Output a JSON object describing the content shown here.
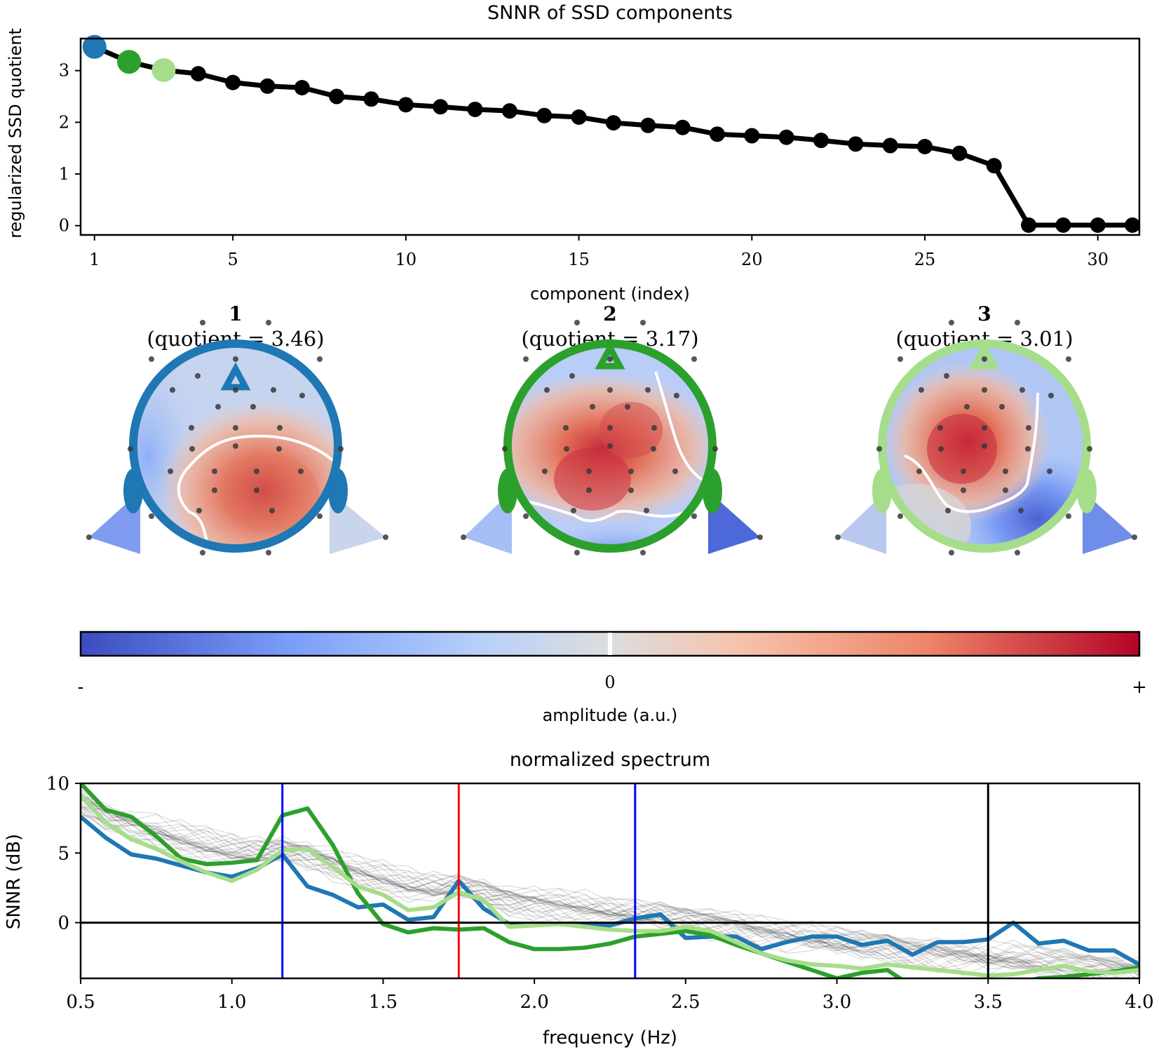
{
  "chart_data": [
    {
      "type": "line",
      "title": "SNNR of SSD components",
      "xlabel": "component (index)",
      "ylabel": "regularized SSD quotient",
      "xlim": [
        0.6,
        31.2
      ],
      "ylim": [
        -0.18,
        3.62
      ],
      "xticks": [
        1,
        5,
        10,
        15,
        20,
        25,
        30
      ],
      "yticks": [
        0,
        1,
        2,
        3
      ],
      "x": [
        1,
        2,
        3,
        4,
        5,
        6,
        7,
        8,
        9,
        10,
        11,
        12,
        13,
        14,
        15,
        16,
        17,
        18,
        19,
        20,
        21,
        22,
        23,
        24,
        25,
        26,
        27,
        28,
        29,
        30,
        31
      ],
      "values": [
        3.46,
        3.17,
        3.01,
        2.94,
        2.77,
        2.7,
        2.67,
        2.5,
        2.45,
        2.34,
        2.3,
        2.25,
        2.22,
        2.13,
        2.1,
        1.99,
        1.94,
        1.9,
        1.77,
        1.74,
        1.71,
        1.65,
        1.58,
        1.55,
        1.53,
        1.4,
        1.16,
        0.01,
        0.01,
        0.01,
        0.01
      ],
      "highlight": [
        {
          "index": 1,
          "color": "#1f77b4"
        },
        {
          "index": 2,
          "color": "#2ca02c"
        },
        {
          "index": 3,
          "color": "#a6dd8a"
        }
      ],
      "line_color": "#000000",
      "grid": false
    },
    {
      "type": "heatmap",
      "kind": "topomap",
      "colormap": "coolwarm",
      "colorbar_label": "amplitude (a.u.)",
      "colorbar_ticks": [
        "-",
        "0",
        "+"
      ],
      "maps": [
        {
          "number": "1",
          "quotient_label": "(quotient = 3.46)",
          "outline_color": "#1f77b4"
        },
        {
          "number": "2",
          "quotient_label": "(quotient = 3.17)",
          "outline_color": "#2ca02c"
        },
        {
          "number": "3",
          "quotient_label": "(quotient = 3.01)",
          "outline_color": "#a6dd8a"
        }
      ]
    },
    {
      "type": "line",
      "title": "normalized spectrum",
      "xlabel": "frequency (Hz)",
      "ylabel": "SNNR (dB)",
      "xlim": [
        0.5,
        4.0
      ],
      "ylim": [
        -4,
        10
      ],
      "xticks": [
        "0.5",
        "1.0",
        "1.5",
        "2.0",
        "2.5",
        "3.0",
        "3.5",
        "4.0"
      ],
      "yticks": [
        "0",
        "5",
        "10"
      ],
      "grid": false,
      "x": [
        0.5,
        0.583,
        0.667,
        0.75,
        0.833,
        0.917,
        1.0,
        1.083,
        1.167,
        1.25,
        1.333,
        1.417,
        1.5,
        1.583,
        1.667,
        1.75,
        1.833,
        1.917,
        2.0,
        2.083,
        2.167,
        2.25,
        2.333,
        2.417,
        2.5,
        2.583,
        2.667,
        2.75,
        2.833,
        2.917,
        3.0,
        3.083,
        3.167,
        3.25,
        3.333,
        3.417,
        3.5,
        3.583,
        3.667,
        3.75,
        3.833,
        3.917,
        4.0
      ],
      "series": [
        {
          "color": "#1f77b4",
          "values": [
            7.6,
            6.1,
            4.9,
            4.6,
            4.1,
            3.6,
            3.3,
            3.9,
            4.9,
            2.6,
            2.0,
            1.1,
            1.3,
            0.2,
            0.4,
            3.0,
            1.0,
            -0.1,
            -0.1,
            -0.1,
            -0.2,
            -0.2,
            0.3,
            0.6,
            -1.1,
            -1.0,
            -1.0,
            -1.9,
            -1.4,
            -1.0,
            -1.0,
            -1.6,
            -1.3,
            -2.3,
            -1.4,
            -1.4,
            -1.2,
            0.0,
            -1.5,
            -1.3,
            -2.0,
            -2.0,
            -3.0
          ]
        },
        {
          "color": "#2ca02c",
          "values": [
            10.0,
            8.1,
            7.6,
            6.2,
            4.6,
            4.2,
            4.3,
            4.5,
            7.7,
            8.2,
            5.6,
            2.1,
            -0.1,
            -0.7,
            -0.4,
            -0.5,
            -0.4,
            -1.4,
            -1.9,
            -1.9,
            -1.8,
            -1.5,
            -1.0,
            -0.8,
            -0.6,
            -0.9,
            -1.6,
            -2.2,
            -2.8,
            -3.4,
            -4.0,
            -3.6,
            -3.4,
            -4.6,
            -5.0,
            -4.9,
            -4.8,
            -4.4,
            -4.0,
            -3.9,
            -3.7,
            -3.5,
            -3.2
          ]
        },
        {
          "color": "#a6dd8a",
          "values": [
            9.2,
            7.2,
            6.0,
            5.3,
            4.4,
            3.6,
            3.0,
            3.8,
            5.2,
            5.3,
            4.0,
            2.6,
            2.0,
            0.9,
            1.1,
            2.2,
            1.6,
            -0.3,
            -0.2,
            -0.1,
            -0.3,
            -0.5,
            -0.6,
            -0.6,
            -0.3,
            -0.6,
            -1.4,
            -2.2,
            -2.7,
            -3.0,
            -3.1,
            -3.3,
            -3.0,
            -3.2,
            -3.4,
            -3.6,
            -3.8,
            -3.7,
            -3.4,
            -3.1,
            -3.5,
            -3.6,
            -3.4
          ]
        }
      ],
      "background_series_count": 28,
      "vlines": [
        {
          "x": 1.167,
          "color": "#0000ff"
        },
        {
          "x": 1.75,
          "color": "#ff0000"
        },
        {
          "x": 2.333,
          "color": "#0000ff"
        },
        {
          "x": 3.5,
          "color": "#000000"
        }
      ],
      "hline": {
        "y": 0,
        "color": "#000000"
      }
    }
  ]
}
